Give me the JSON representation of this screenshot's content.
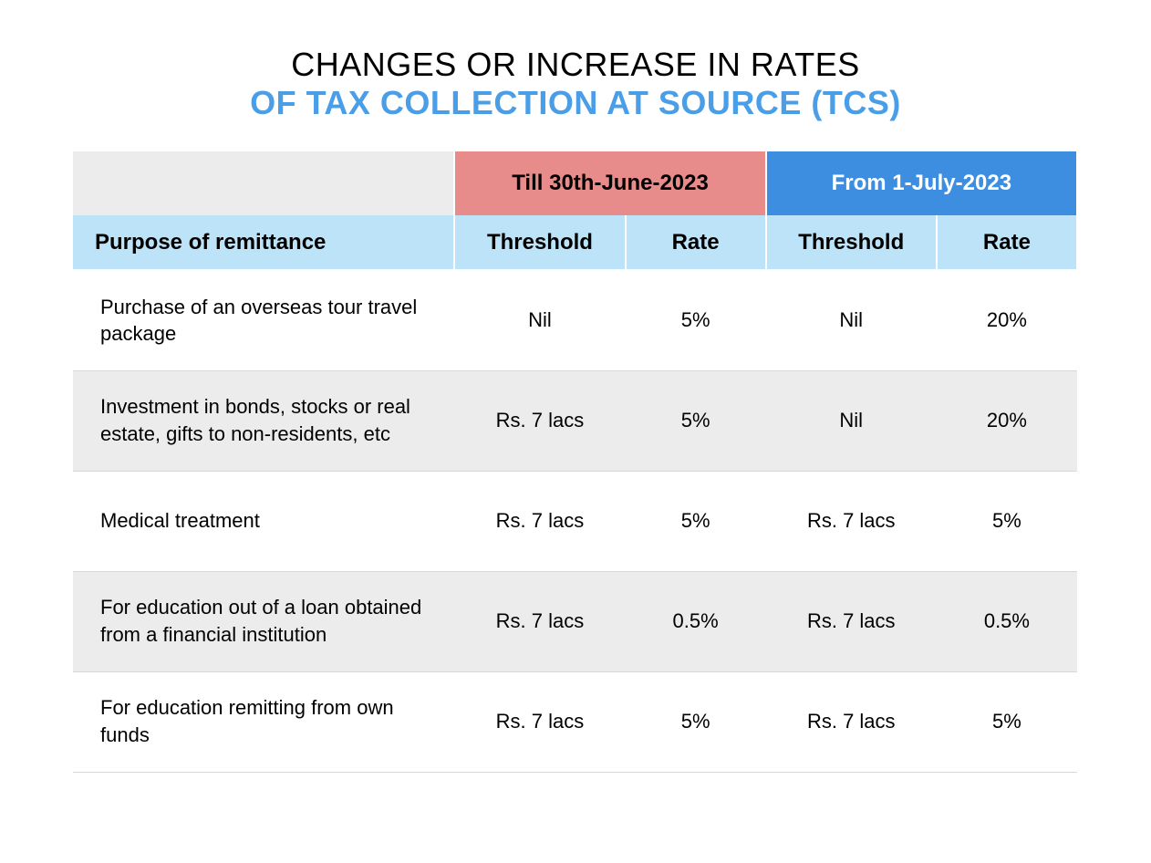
{
  "title": {
    "line1": "CHANGES OR INCREASE IN RATES",
    "line2": "OF TAX COLLECTION AT SOURCE (TCS)",
    "line2_color": "#4a9ee8"
  },
  "layout": {
    "columns": {
      "purpose_pct": 38,
      "threshold_pct": 17,
      "rate_pct": 14
    },
    "fonts": {
      "title_size": 36,
      "header_size": 24,
      "body_size": 22
    }
  },
  "table": {
    "period_headers": {
      "till": {
        "label": "Till 30th-June-2023",
        "bg": "#e88b8b",
        "fg": "#000000"
      },
      "from": {
        "label": "From 1-July-2023",
        "bg": "#3d8de0",
        "fg": "#ffffff"
      }
    },
    "sub_headers": {
      "purpose": "Purpose of remittance",
      "threshold": "Threshold",
      "rate": "Rate",
      "bg": "#bce3f7"
    },
    "row_alt_bg": "#ececec",
    "row_border": "#d8d8d8",
    "rows": [
      {
        "purpose": "Purchase of an overseas tour travel package",
        "till_threshold": "Nil",
        "till_rate": "5%",
        "from_threshold": "Nil",
        "from_rate": "20%",
        "alt": false
      },
      {
        "purpose": "Investment in bonds, stocks or real estate, gifts to non-residents, etc",
        "till_threshold": "Rs. 7 lacs",
        "till_rate": "5%",
        "from_threshold": "Nil",
        "from_rate": "20%",
        "alt": true
      },
      {
        "purpose": "Medical treatment",
        "till_threshold": "Rs. 7 lacs",
        "till_rate": "5%",
        "from_threshold": "Rs. 7 lacs",
        "from_rate": "5%",
        "alt": false
      },
      {
        "purpose": "For education out of a loan obtained from a financial institution",
        "till_threshold": "Rs. 7 lacs",
        "till_rate": "0.5%",
        "from_threshold": "Rs. 7 lacs",
        "from_rate": "0.5%",
        "alt": true
      },
      {
        "purpose": "For education remitting from own funds",
        "till_threshold": "Rs. 7 lacs",
        "till_rate": "5%",
        "from_threshold": "Rs. 7 lacs",
        "from_rate": "5%",
        "alt": false
      }
    ]
  }
}
